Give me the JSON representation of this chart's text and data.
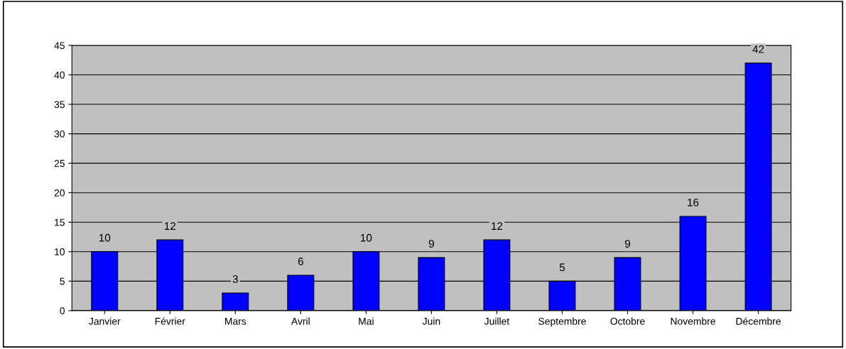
{
  "chart_data": {
    "type": "bar",
    "categories": [
      "Janvier",
      "Février",
      "Mars",
      "Avril",
      "Mai",
      "Juin",
      "Juillet",
      "Septembre",
      "Octobre",
      "Novembre",
      "Décembre"
    ],
    "values": [
      10,
      12,
      3,
      6,
      10,
      9,
      12,
      5,
      9,
      16,
      42
    ],
    "color": "#0000ff",
    "ylim": [
      0,
      45
    ],
    "yticks": [
      0,
      5,
      10,
      15,
      20,
      25,
      30,
      35,
      40,
      45
    ],
    "grid": "y",
    "data_labels": true
  }
}
